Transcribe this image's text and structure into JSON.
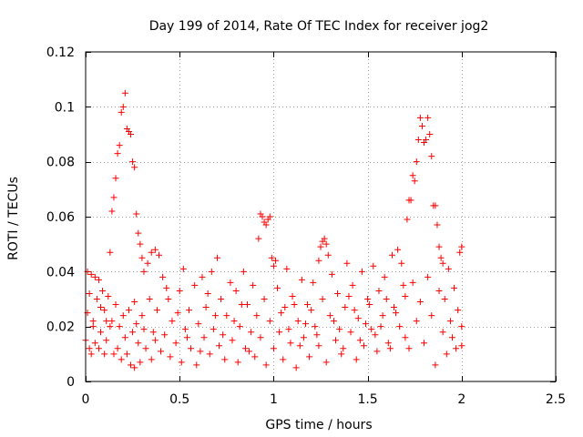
{
  "chart_data": {
    "type": "scatter",
    "title": "Day 199 of 2014, Rate Of TEC Index for receiver jog2",
    "xlabel": "GPS time / hours",
    "ylabel": "ROTI / TECUs",
    "xlim": [
      0,
      2.5
    ],
    "ylim": [
      0,
      0.12
    ],
    "xticks": [
      0,
      0.5,
      1,
      1.5,
      2,
      2.5
    ],
    "xtick_labels": [
      "0",
      "0.5",
      "1",
      "1.5",
      "2",
      "2.5"
    ],
    "yticks": [
      0,
      0.02,
      0.04,
      0.06,
      0.08,
      0.1,
      0.12
    ],
    "ytick_labels": [
      "0",
      "0.02",
      "0.04",
      "0.06",
      "0.08",
      "0.1",
      "0.12"
    ],
    "grid": true,
    "marker": "plus",
    "series": [
      {
        "name": "ROTI",
        "color": "#ff0000",
        "points": [
          [
            0.0,
            0.015
          ],
          [
            0.01,
            0.025
          ],
          [
            0.01,
            0.04
          ],
          [
            0.02,
            0.012
          ],
          [
            0.02,
            0.032
          ],
          [
            0.03,
            0.039
          ],
          [
            0.03,
            0.01
          ],
          [
            0.04,
            0.022
          ],
          [
            0.05,
            0.038
          ],
          [
            0.05,
            0.014
          ],
          [
            0.06,
            0.03
          ],
          [
            0.07,
            0.012
          ],
          [
            0.07,
            0.037
          ],
          [
            0.08,
            0.018
          ],
          [
            0.09,
            0.033
          ],
          [
            0.1,
            0.01
          ],
          [
            0.1,
            0.026
          ],
          [
            0.11,
            0.015
          ],
          [
            0.12,
            0.031
          ],
          [
            0.13,
            0.02
          ],
          [
            0.13,
            0.047
          ],
          [
            0.14,
            0.062
          ],
          [
            0.15,
            0.067
          ],
          [
            0.16,
            0.074
          ],
          [
            0.17,
            0.083
          ],
          [
            0.18,
            0.086
          ],
          [
            0.19,
            0.098
          ],
          [
            0.2,
            0.1
          ],
          [
            0.21,
            0.105
          ],
          [
            0.22,
            0.092
          ],
          [
            0.23,
            0.091
          ],
          [
            0.24,
            0.09
          ],
          [
            0.25,
            0.08
          ],
          [
            0.26,
            0.078
          ],
          [
            0.27,
            0.061
          ],
          [
            0.28,
            0.054
          ],
          [
            0.29,
            0.05
          ],
          [
            0.3,
            0.045
          ],
          [
            0.31,
            0.04
          ],
          [
            0.33,
            0.043
          ],
          [
            0.35,
            0.047
          ],
          [
            0.37,
            0.048
          ],
          [
            0.39,
            0.046
          ],
          [
            0.14,
            0.022
          ],
          [
            0.15,
            0.01
          ],
          [
            0.16,
            0.028
          ],
          [
            0.17,
            0.012
          ],
          [
            0.18,
            0.02
          ],
          [
            0.19,
            0.008
          ],
          [
            0.2,
            0.024
          ],
          [
            0.21,
            0.016
          ],
          [
            0.22,
            0.01
          ],
          [
            0.23,
            0.026
          ],
          [
            0.24,
            0.006
          ],
          [
            0.25,
            0.018
          ],
          [
            0.26,
            0.005
          ],
          [
            0.27,
            0.021
          ],
          [
            0.28,
            0.014
          ],
          [
            0.29,
            0.007
          ],
          [
            0.3,
            0.024
          ],
          [
            0.32,
            0.012
          ],
          [
            0.34,
            0.03
          ],
          [
            0.35,
            0.008
          ],
          [
            0.36,
            0.018
          ],
          [
            0.38,
            0.026
          ],
          [
            0.4,
            0.011
          ],
          [
            0.41,
            0.038
          ],
          [
            0.42,
            0.017
          ],
          [
            0.44,
            0.03
          ],
          [
            0.45,
            0.009
          ],
          [
            0.46,
            0.022
          ],
          [
            0.48,
            0.014
          ],
          [
            0.5,
            0.033
          ],
          [
            0.51,
            0.007
          ],
          [
            0.52,
            0.041
          ],
          [
            0.53,
            0.019
          ],
          [
            0.55,
            0.026
          ],
          [
            0.56,
            0.012
          ],
          [
            0.58,
            0.035
          ],
          [
            0.59,
            0.006
          ],
          [
            0.6,
            0.021
          ],
          [
            0.62,
            0.038
          ],
          [
            0.63,
            0.016
          ],
          [
            0.64,
            0.027
          ],
          [
            0.66,
            0.01
          ],
          [
            0.67,
            0.04
          ],
          [
            0.68,
            0.019
          ],
          [
            0.7,
            0.045
          ],
          [
            0.71,
            0.013
          ],
          [
            0.72,
            0.03
          ],
          [
            0.74,
            0.008
          ],
          [
            0.75,
            0.024
          ],
          [
            0.77,
            0.036
          ],
          [
            0.78,
            0.015
          ],
          [
            0.8,
            0.033
          ],
          [
            0.81,
            0.007
          ],
          [
            0.82,
            0.02
          ],
          [
            0.84,
            0.04
          ],
          [
            0.85,
            0.012
          ],
          [
            0.86,
            0.028
          ],
          [
            0.88,
            0.018
          ],
          [
            0.89,
            0.035
          ],
          [
            0.9,
            0.009
          ],
          [
            0.91,
            0.024
          ],
          [
            0.92,
            0.052
          ],
          [
            0.93,
            0.061
          ],
          [
            0.94,
            0.06
          ],
          [
            0.95,
            0.058
          ],
          [
            0.96,
            0.057
          ],
          [
            0.97,
            0.059
          ],
          [
            0.98,
            0.06
          ],
          [
            0.99,
            0.045
          ],
          [
            1.0,
            0.042
          ],
          [
            1.01,
            0.044
          ],
          [
            0.93,
            0.016
          ],
          [
            0.95,
            0.03
          ],
          [
            0.96,
            0.006
          ],
          [
            0.98,
            0.022
          ],
          [
            1.0,
            0.012
          ],
          [
            1.02,
            0.034
          ],
          [
            1.03,
            0.018
          ],
          [
            1.05,
            0.008
          ],
          [
            1.06,
            0.027
          ],
          [
            1.07,
            0.041
          ],
          [
            1.09,
            0.014
          ],
          [
            1.1,
            0.031
          ],
          [
            1.12,
            0.005
          ],
          [
            1.13,
            0.022
          ],
          [
            1.15,
            0.037
          ],
          [
            1.16,
            0.016
          ],
          [
            1.18,
            0.028
          ],
          [
            1.19,
            0.009
          ],
          [
            1.21,
            0.036
          ],
          [
            1.22,
            0.02
          ],
          [
            1.24,
            0.044
          ],
          [
            1.25,
            0.049
          ],
          [
            1.26,
            0.051
          ],
          [
            1.27,
            0.052
          ],
          [
            1.28,
            0.05
          ],
          [
            1.29,
            0.046
          ],
          [
            1.24,
            0.013
          ],
          [
            1.26,
            0.03
          ],
          [
            1.28,
            0.007
          ],
          [
            1.3,
            0.024
          ],
          [
            1.31,
            0.039
          ],
          [
            1.33,
            0.015
          ],
          [
            1.34,
            0.032
          ],
          [
            1.36,
            0.01
          ],
          [
            1.38,
            0.027
          ],
          [
            1.39,
            0.043
          ],
          [
            1.41,
            0.018
          ],
          [
            1.42,
            0.035
          ],
          [
            1.44,
            0.008
          ],
          [
            1.45,
            0.023
          ],
          [
            1.47,
            0.04
          ],
          [
            1.48,
            0.013
          ],
          [
            1.5,
            0.03
          ],
          [
            1.52,
            0.019
          ],
          [
            1.53,
            0.042
          ],
          [
            1.55,
            0.011
          ],
          [
            1.56,
            0.033
          ],
          [
            1.58,
            0.024
          ],
          [
            1.59,
            0.038
          ],
          [
            1.61,
            0.014
          ],
          [
            1.63,
            0.046
          ],
          [
            1.64,
            0.027
          ],
          [
            1.66,
            0.048
          ],
          [
            1.67,
            0.02
          ],
          [
            1.68,
            0.043
          ],
          [
            1.7,
            0.016
          ],
          [
            1.71,
            0.059
          ],
          [
            1.72,
            0.066
          ],
          [
            1.73,
            0.066
          ],
          [
            1.74,
            0.075
          ],
          [
            1.75,
            0.073
          ],
          [
            1.76,
            0.08
          ],
          [
            1.77,
            0.088
          ],
          [
            1.78,
            0.096
          ],
          [
            1.79,
            0.093
          ],
          [
            1.8,
            0.087
          ],
          [
            1.81,
            0.088
          ],
          [
            1.82,
            0.096
          ],
          [
            1.83,
            0.09
          ],
          [
            1.84,
            0.082
          ],
          [
            1.85,
            0.064
          ],
          [
            1.86,
            0.064
          ],
          [
            1.87,
            0.057
          ],
          [
            1.88,
            0.049
          ],
          [
            1.89,
            0.045
          ],
          [
            1.9,
            0.043
          ],
          [
            1.7,
            0.031
          ],
          [
            1.72,
            0.012
          ],
          [
            1.74,
            0.036
          ],
          [
            1.76,
            0.022
          ],
          [
            1.78,
            0.029
          ],
          [
            1.8,
            0.014
          ],
          [
            1.82,
            0.038
          ],
          [
            1.84,
            0.024
          ],
          [
            1.86,
            0.006
          ],
          [
            1.88,
            0.033
          ],
          [
            1.9,
            0.018
          ],
          [
            1.91,
            0.03
          ],
          [
            1.92,
            0.01
          ],
          [
            1.93,
            0.041
          ],
          [
            1.94,
            0.022
          ],
          [
            1.95,
            0.016
          ],
          [
            1.96,
            0.034
          ],
          [
            1.97,
            0.012
          ],
          [
            1.98,
            0.026
          ],
          [
            1.99,
            0.047
          ],
          [
            2.0,
            0.049
          ],
          [
            2.0,
            0.02
          ],
          [
            2.0,
            0.013
          ],
          [
            0.04,
            0.02
          ],
          [
            0.08,
            0.027
          ],
          [
            0.11,
            0.022
          ],
          [
            0.26,
            0.029
          ],
          [
            0.31,
            0.019
          ],
          [
            0.37,
            0.015
          ],
          [
            0.43,
            0.034
          ],
          [
            0.49,
            0.025
          ],
          [
            0.54,
            0.016
          ],
          [
            0.61,
            0.011
          ],
          [
            0.65,
            0.032
          ],
          [
            0.69,
            0.024
          ],
          [
            0.73,
            0.017
          ],
          [
            0.79,
            0.022
          ],
          [
            0.83,
            0.028
          ],
          [
            0.87,
            0.011
          ],
          [
            1.04,
            0.025
          ],
          [
            1.08,
            0.019
          ],
          [
            1.11,
            0.028
          ],
          [
            1.14,
            0.013
          ],
          [
            1.17,
            0.021
          ],
          [
            1.2,
            0.026
          ],
          [
            1.23,
            0.017
          ],
          [
            1.32,
            0.022
          ],
          [
            1.35,
            0.019
          ],
          [
            1.37,
            0.012
          ],
          [
            1.4,
            0.031
          ],
          [
            1.43,
            0.026
          ],
          [
            1.46,
            0.015
          ],
          [
            1.49,
            0.021
          ],
          [
            1.51,
            0.028
          ],
          [
            1.54,
            0.017
          ],
          [
            1.57,
            0.02
          ],
          [
            1.6,
            0.03
          ],
          [
            1.62,
            0.012
          ],
          [
            1.65,
            0.025
          ],
          [
            1.69,
            0.035
          ]
        ]
      }
    ]
  }
}
